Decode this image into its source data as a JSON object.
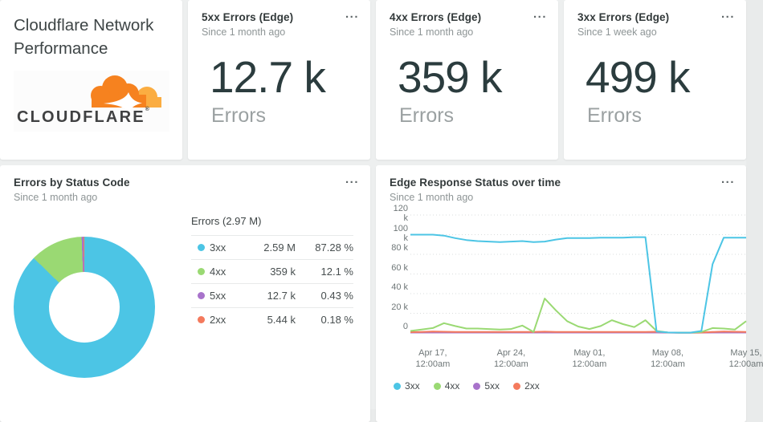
{
  "dashboard": {
    "title": "Cloudflare Network Performance",
    "logo_wordmark": "CLOUDFLARE",
    "logo_reg_mark": "®",
    "menu_glyph": "..."
  },
  "kpi_cards": [
    {
      "title": "5xx Errors (Edge)",
      "subtitle": "Since 1 month ago",
      "value": "12.7 k",
      "unit": "Errors"
    },
    {
      "title": "4xx Errors (Edge)",
      "subtitle": "Since 1 month ago",
      "value": "359 k",
      "unit": "Errors"
    },
    {
      "title": "3xx Errors (Edge)",
      "subtitle": "Since 1 week ago",
      "value": "499 k",
      "unit": "Errors"
    }
  ],
  "donut_card": {
    "title": "Errors by Status Code",
    "subtitle": "Since 1 month ago",
    "table_header": "Errors (2.97 M)",
    "rows": [
      {
        "label": "3xx",
        "value": "2.59 M",
        "percent": "87.28 %"
      },
      {
        "label": "4xx",
        "value": "359 k",
        "percent": "12.1 %"
      },
      {
        "label": "5xx",
        "value": "12.7 k",
        "percent": "0.43 %"
      },
      {
        "label": "2xx",
        "value": "5.44 k",
        "percent": "0.18 %"
      }
    ]
  },
  "line_card": {
    "title": "Edge Response Status over time",
    "subtitle": "Since 1 month ago"
  },
  "colors": {
    "status_3xx": "#4cc5e5",
    "status_4xx": "#9ad973",
    "status_5xx": "#a873cb",
    "status_2xx": "#f47a5d",
    "cloudflare_orange": "#f6821f",
    "cloudflare_orange_light": "#fbad41",
    "kpi_value_text": "#2b3c3e"
  },
  "chart_data": [
    {
      "type": "pie",
      "donut": true,
      "title": "Errors by Status Code",
      "subtitle": "Since 1 month ago",
      "total_label": "Errors (2.97 M)",
      "labels": [
        "3xx",
        "4xx",
        "5xx",
        "2xx"
      ],
      "values": [
        2590000,
        359000,
        12700,
        5440
      ],
      "percents": [
        87.28,
        12.1,
        0.43,
        0.18
      ],
      "colors": [
        "#4cc5e5",
        "#9ad973",
        "#a873cb",
        "#f47a5d"
      ],
      "start_angle_deg": 0,
      "legend_position": "right-table"
    },
    {
      "type": "line",
      "title": "Edge Response Status over time",
      "subtitle": "Since 1 month ago",
      "value_unit": "k",
      "ylim": [
        0,
        120
      ],
      "grid": "dotted-horizontal",
      "legend_position": "bottom",
      "y_ticks": [
        {
          "v": 0,
          "label": "0"
        },
        {
          "v": 20,
          "label": "20 k"
        },
        {
          "v": 40,
          "label": "40 k"
        },
        {
          "v": 60,
          "label": "60 k"
        },
        {
          "v": 80,
          "label": "80 k"
        },
        {
          "v": 100,
          "label": "100 k"
        },
        {
          "v": 120,
          "label": "120 k"
        }
      ],
      "x_ticks": [
        {
          "pos": 0.0667,
          "line1": "Apr 17,",
          "line2": "12:00am"
        },
        {
          "pos": 0.3,
          "line1": "Apr 24,",
          "line2": "12:00am"
        },
        {
          "pos": 0.5333,
          "line1": "May 01,",
          "line2": "12:00am"
        },
        {
          "pos": 0.7667,
          "line1": "May 08,",
          "line2": "12:00am"
        },
        {
          "pos": 1.0,
          "line1": "May 15,",
          "line2": "12:00am"
        }
      ],
      "series": [
        {
          "name": "3xx",
          "color": "#4cc5e5",
          "values": [
            100,
            100,
            100,
            99,
            96.5,
            94.5,
            93.5,
            93,
            92.5,
            93,
            93.5,
            92.5,
            93,
            95,
            96.5,
            96.5,
            96.5,
            97,
            97,
            97,
            97.5,
            97.5,
            1.5,
            0.5,
            0.3,
            0.3,
            2,
            70,
            97,
            97,
            97
          ]
        },
        {
          "name": "4xx",
          "color": "#9ad973",
          "values": [
            2,
            3.5,
            5,
            10,
            7,
            4.5,
            4.5,
            4,
            3.5,
            4,
            7.5,
            1,
            35,
            23,
            12,
            6.5,
            4,
            7,
            13,
            9,
            6,
            13,
            2,
            0.5,
            0.3,
            0.3,
            1,
            5,
            4.5,
            3.5,
            12
          ]
        },
        {
          "name": "5xx",
          "color": "#a873cb",
          "values": [
            0.4,
            0.4,
            0.4,
            0.4,
            0.4,
            0.4,
            0.4,
            0.4,
            0.4,
            0.4,
            0.4,
            0.4,
            0.4,
            0.4,
            0.4,
            0.4,
            0.4,
            0.4,
            0.4,
            0.4,
            0.4,
            0.4,
            0.4,
            0.3,
            0.2,
            0.2,
            0.3,
            0.4,
            0.4,
            0.4,
            0.4
          ]
        },
        {
          "name": "2xx",
          "color": "#f47a5d",
          "values": [
            0.8,
            1,
            1.4,
            1.2,
            1,
            1,
            1,
            1,
            1,
            1,
            1,
            1,
            1.3,
            1.1,
            1,
            1,
            1,
            1,
            1,
            1,
            1,
            1,
            1.2,
            0.4,
            0.3,
            0.3,
            0.4,
            1,
            1.4,
            1.2,
            1
          ]
        }
      ]
    }
  ]
}
